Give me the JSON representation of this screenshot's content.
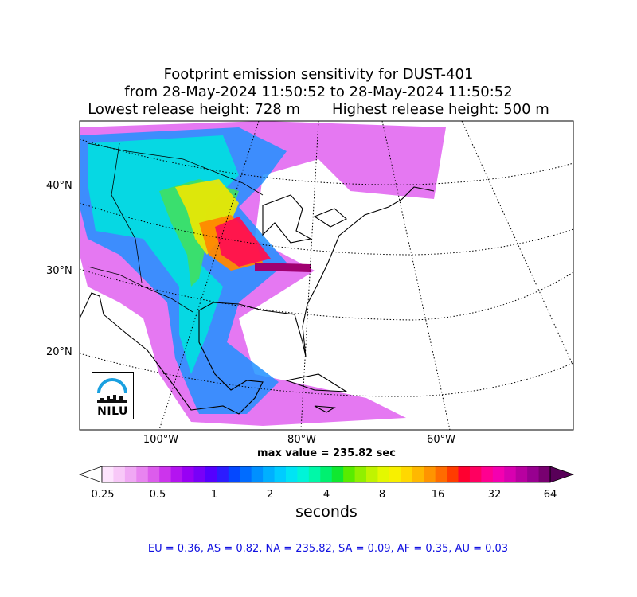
{
  "title": {
    "line1": "Footprint emission sensitivity for DUST-401",
    "line2": "from 28-May-2024 11:50:52 to 28-May-2024 11:50:52",
    "line3": "Lowest release height: 728 m       Highest release height: 500 m"
  },
  "map": {
    "lat_labels": [
      "40°N",
      "30°N",
      "20°N"
    ],
    "lon_labels": [
      "100°W",
      "80°W",
      "60°W"
    ],
    "max_value": "max value = 235.82 sec"
  },
  "colorbar": {
    "ticks": [
      "0.25",
      "0.5",
      "1",
      "2",
      "4",
      "8",
      "16",
      "32",
      "64"
    ],
    "unit": "seconds",
    "colors": [
      "#ffffff",
      "#fde4fd",
      "#f8c8f8",
      "#f0a8f4",
      "#e884f0",
      "#dc5cec",
      "#cc34ec",
      "#b414f0",
      "#9800f4",
      "#7800f8",
      "#5400ff",
      "#2c1cff",
      "#0448ff",
      "#006cff",
      "#0090ff",
      "#00b0ff",
      "#00ccff",
      "#00e4f4",
      "#00f4d8",
      "#00f8a8",
      "#00f070",
      "#10e830",
      "#58ec00",
      "#90f000",
      "#c0f400",
      "#e4f800",
      "#f8f000",
      "#ffd800",
      "#ffb800",
      "#ff9400",
      "#ff6c00",
      "#ff3c00",
      "#ff0030",
      "#ff0060",
      "#ff0090",
      "#f400b0",
      "#d800b0",
      "#b800a0",
      "#980090",
      "#780070",
      "#580058"
    ]
  },
  "regions": "EU = 0.36,  AS = 0.82,  NA = 235.82,  SA = 0.09,  AF = 0.35,  AU = 0.03",
  "logo": {
    "text": "NILU",
    "colors": {
      "arc": "#1aa0e0",
      "skyline": "#111111"
    }
  }
}
